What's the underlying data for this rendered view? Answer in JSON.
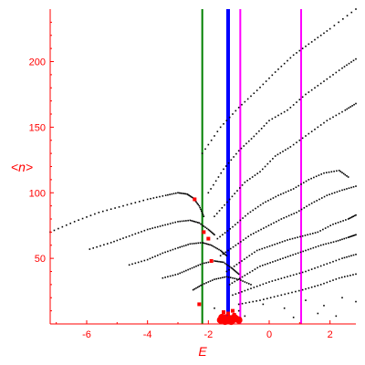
{
  "chart_data": {
    "type": "scatter",
    "title": "",
    "xlabel": "E",
    "ylabel": "<n>",
    "xlim": [
      -7.2,
      2.85
    ],
    "ylim": [
      0,
      240
    ],
    "x_ticks": [
      "-6",
      "-4",
      "-2",
      "0",
      "2"
    ],
    "y_ticks": [
      "50",
      "100",
      "150",
      "200"
    ],
    "axis_color": "#ff0000",
    "grid": false,
    "legend": "none",
    "vertical_lines": [
      {
        "x": -2.2,
        "color": "#008000",
        "width": 2
      },
      {
        "x": -1.35,
        "color": "#0000ff",
        "width": 4
      },
      {
        "x": -0.95,
        "color": "#ff00ff",
        "width": 2
      },
      {
        "x": 1.05,
        "color": "#ff00ff",
        "width": 2
      }
    ],
    "series": [
      {
        "color": "#000000",
        "points": [
          [
            -7.2,
            70
          ],
          [
            -6.4,
            78
          ],
          [
            -5.6,
            85
          ],
          [
            -4.8,
            90
          ],
          [
            -4.0,
            95
          ],
          [
            -3.4,
            98
          ],
          [
            -3.0,
            100
          ],
          [
            -2.7,
            99
          ],
          [
            -2.5,
            96
          ],
          [
            -2.3,
            90
          ],
          [
            -2.15,
            82
          ]
        ]
      },
      {
        "color": "#000000",
        "points": [
          [
            -5.9,
            57
          ],
          [
            -5.2,
            62
          ],
          [
            -4.6,
            67
          ],
          [
            -4.0,
            72
          ],
          [
            -3.5,
            75
          ],
          [
            -3.0,
            78
          ],
          [
            -2.6,
            79
          ],
          [
            -2.3,
            77
          ],
          [
            -2.0,
            72
          ],
          [
            -1.8,
            68
          ]
        ]
      },
      {
        "color": "#000000",
        "points": [
          [
            -4.6,
            45
          ],
          [
            -4.0,
            49
          ],
          [
            -3.5,
            54
          ],
          [
            -3.0,
            58
          ],
          [
            -2.6,
            61
          ],
          [
            -2.2,
            62
          ],
          [
            -1.9,
            60
          ],
          [
            -1.6,
            56
          ],
          [
            -1.4,
            52
          ]
        ]
      },
      {
        "color": "#000000",
        "points": [
          [
            -3.5,
            35
          ],
          [
            -3.0,
            38
          ],
          [
            -2.6,
            42
          ],
          [
            -2.2,
            46
          ],
          [
            -1.8,
            48
          ],
          [
            -1.5,
            47
          ],
          [
            -1.2,
            42
          ],
          [
            -1.0,
            38
          ]
        ]
      },
      {
        "color": "#000000",
        "points": [
          [
            -2.5,
            26
          ],
          [
            -2.2,
            30
          ],
          [
            -1.8,
            34
          ],
          [
            -1.4,
            36
          ],
          [
            -1.0,
            34
          ],
          [
            -0.6,
            30
          ]
        ]
      },
      {
        "color": "#000000",
        "points": [
          [
            -2.2,
            130
          ],
          [
            -1.6,
            150
          ],
          [
            -1.0,
            165
          ],
          [
            -0.4,
            178
          ],
          [
            0.2,
            192
          ],
          [
            0.8,
            205
          ],
          [
            1.4,
            215
          ],
          [
            2.0,
            225
          ],
          [
            2.85,
            240
          ]
        ]
      },
      {
        "color": "#000000",
        "points": [
          [
            -2.0,
            100
          ],
          [
            -1.5,
            118
          ],
          [
            -1.0,
            132
          ],
          [
            -0.5,
            143
          ],
          [
            0.0,
            155
          ],
          [
            0.6,
            163
          ],
          [
            1.2,
            175
          ],
          [
            1.8,
            185
          ],
          [
            2.4,
            195
          ],
          [
            2.85,
            202
          ]
        ]
      },
      {
        "color": "#000000",
        "points": [
          [
            -1.8,
            82
          ],
          [
            -1.3,
            95
          ],
          [
            -0.8,
            108
          ],
          [
            -0.3,
            116
          ],
          [
            0.2,
            128
          ],
          [
            0.7,
            135
          ],
          [
            1.3,
            145
          ],
          [
            1.9,
            155
          ],
          [
            2.5,
            163
          ],
          [
            2.85,
            168
          ]
        ]
      },
      {
        "color": "#000000",
        "points": [
          [
            -1.7,
            65
          ],
          [
            -1.2,
            74
          ],
          [
            -0.7,
            84
          ],
          [
            -0.2,
            92
          ],
          [
            0.3,
            98
          ],
          [
            0.8,
            103
          ],
          [
            1.3,
            110
          ],
          [
            1.8,
            115
          ],
          [
            2.3,
            117
          ],
          [
            2.6,
            112
          ]
        ]
      },
      {
        "color": "#000000",
        "points": [
          [
            -1.6,
            52
          ],
          [
            -1.1,
            60
          ],
          [
            -0.6,
            68
          ],
          [
            -0.1,
            74
          ],
          [
            0.4,
            80
          ],
          [
            0.9,
            85
          ],
          [
            1.4,
            92
          ],
          [
            1.9,
            98
          ],
          [
            2.4,
            102
          ],
          [
            2.85,
            105
          ]
        ]
      },
      {
        "color": "#000000",
        "points": [
          [
            -1.4,
            40
          ],
          [
            -0.9,
            48
          ],
          [
            -0.4,
            56
          ],
          [
            0.1,
            60
          ],
          [
            0.6,
            64
          ],
          [
            1.1,
            67
          ],
          [
            1.6,
            70
          ],
          [
            2.1,
            76
          ],
          [
            2.6,
            80
          ],
          [
            2.85,
            83
          ]
        ]
      },
      {
        "color": "#000000",
        "points": [
          [
            -1.3,
            30
          ],
          [
            -0.8,
            37
          ],
          [
            -0.3,
            44
          ],
          [
            0.2,
            48
          ],
          [
            0.7,
            52
          ],
          [
            1.2,
            56
          ],
          [
            1.7,
            60
          ],
          [
            2.2,
            63
          ],
          [
            2.6,
            66
          ],
          [
            2.85,
            68
          ]
        ]
      },
      {
        "color": "#000000",
        "points": [
          [
            -1.2,
            22
          ],
          [
            -0.6,
            27
          ],
          [
            0.0,
            32
          ],
          [
            0.6,
            36
          ],
          [
            1.2,
            40
          ],
          [
            1.8,
            45
          ],
          [
            2.4,
            50
          ],
          [
            2.85,
            53
          ]
        ]
      },
      {
        "color": "#000000",
        "points": [
          [
            -1.0,
            15
          ],
          [
            -0.3,
            18
          ],
          [
            0.4,
            22
          ],
          [
            1.1,
            26
          ],
          [
            1.7,
            30
          ],
          [
            2.3,
            35
          ],
          [
            2.85,
            38
          ]
        ]
      },
      {
        "color": "#000000",
        "points": [
          [
            -1.8,
            12
          ],
          [
            -1.0,
            10
          ],
          [
            -0.2,
            15
          ],
          [
            0.5,
            12
          ],
          [
            1.2,
            18
          ],
          [
            1.8,
            14
          ],
          [
            2.4,
            20
          ],
          [
            2.85,
            17
          ],
          [
            -0.8,
            6
          ],
          [
            0.8,
            5
          ],
          [
            1.6,
            8
          ],
          [
            2.2,
            6
          ]
        ]
      },
      {
        "color": "#ff0000",
        "points": [
          [
            -2.45,
            95
          ],
          [
            -2.15,
            70
          ],
          [
            -2.0,
            65
          ],
          [
            -1.9,
            48
          ],
          [
            -2.3,
            15
          ],
          [
            -1.6,
            5
          ],
          [
            -1.45,
            6
          ],
          [
            -1.35,
            8
          ],
          [
            -1.25,
            5
          ],
          [
            -1.15,
            7
          ],
          [
            -1.05,
            4
          ],
          [
            -1.5,
            9
          ],
          [
            -1.2,
            10
          ]
        ]
      }
    ]
  }
}
